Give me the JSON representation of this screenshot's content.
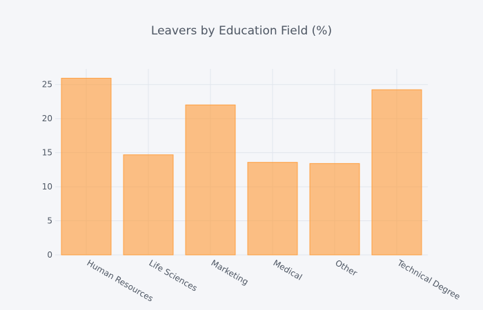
{
  "chart_data": {
    "type": "bar",
    "title": "Leavers by Education Field (%)",
    "xlabel": "",
    "ylabel": "",
    "categories": [
      "Human Resources",
      "Life Sciences",
      "Marketing",
      "Medical",
      "Other",
      "Technical Degree"
    ],
    "values": [
      25.93,
      14.69,
      22.01,
      13.58,
      13.41,
      24.24
    ],
    "ylim": [
      0,
      27.3
    ],
    "yticks": [
      0,
      5,
      10,
      15,
      20,
      25
    ],
    "grid": true,
    "legend": "none",
    "colors": {
      "bar_fill": "#ff9933",
      "background": "#f5f6f9",
      "grid": "#e1e5ed",
      "text": "#4d5663"
    }
  }
}
